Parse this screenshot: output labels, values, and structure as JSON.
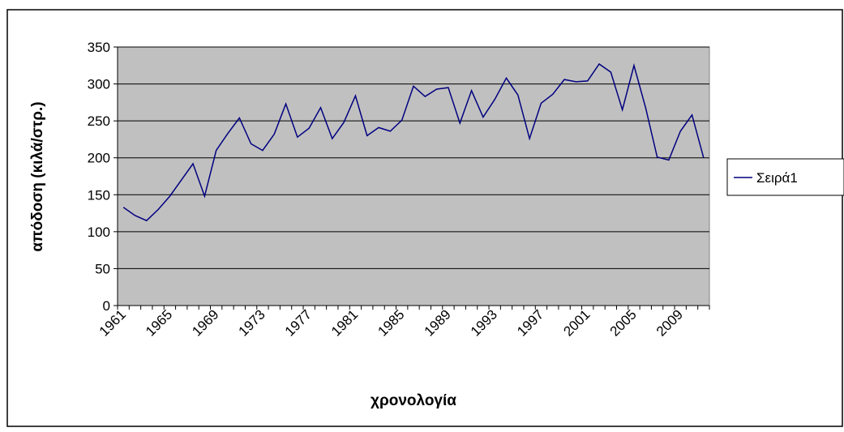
{
  "chart_data": {
    "type": "line",
    "x_label": "χρονολογία",
    "y_label": "απόδοση (κιλά/στρ.)",
    "categories": [
      "1961",
      null,
      null,
      null,
      "1965",
      null,
      null,
      null,
      "1969",
      null,
      null,
      null,
      "1973",
      null,
      null,
      null,
      "1977",
      null,
      null,
      null,
      "1981",
      null,
      null,
      null,
      "1985",
      null,
      null,
      null,
      "1989",
      null,
      null,
      null,
      "1993",
      null,
      null,
      null,
      "1997",
      null,
      null,
      null,
      "2001",
      null,
      null,
      null,
      "2005",
      null,
      null,
      null,
      "2009",
      null,
      null
    ],
    "series": [
      {
        "name": "Σειρά1",
        "color": "#000080",
        "values": [
          133,
          122,
          115,
          130,
          148,
          170,
          192,
          148,
          210,
          233,
          254,
          219,
          210,
          232,
          273,
          228,
          240,
          268,
          226,
          248,
          284,
          230,
          241,
          236,
          251,
          297,
          283,
          293,
          295,
          247,
          291,
          255,
          279,
          308,
          285,
          226,
          274,
          286,
          306,
          303,
          304,
          327,
          316,
          265,
          325,
          268,
          201,
          197,
          236,
          258,
          200
        ]
      }
    ],
    "ylim": [
      0,
      350
    ],
    "yticks": [
      0,
      50,
      100,
      150,
      200,
      250,
      300,
      350
    ],
    "grid": true,
    "legend": "right"
  }
}
